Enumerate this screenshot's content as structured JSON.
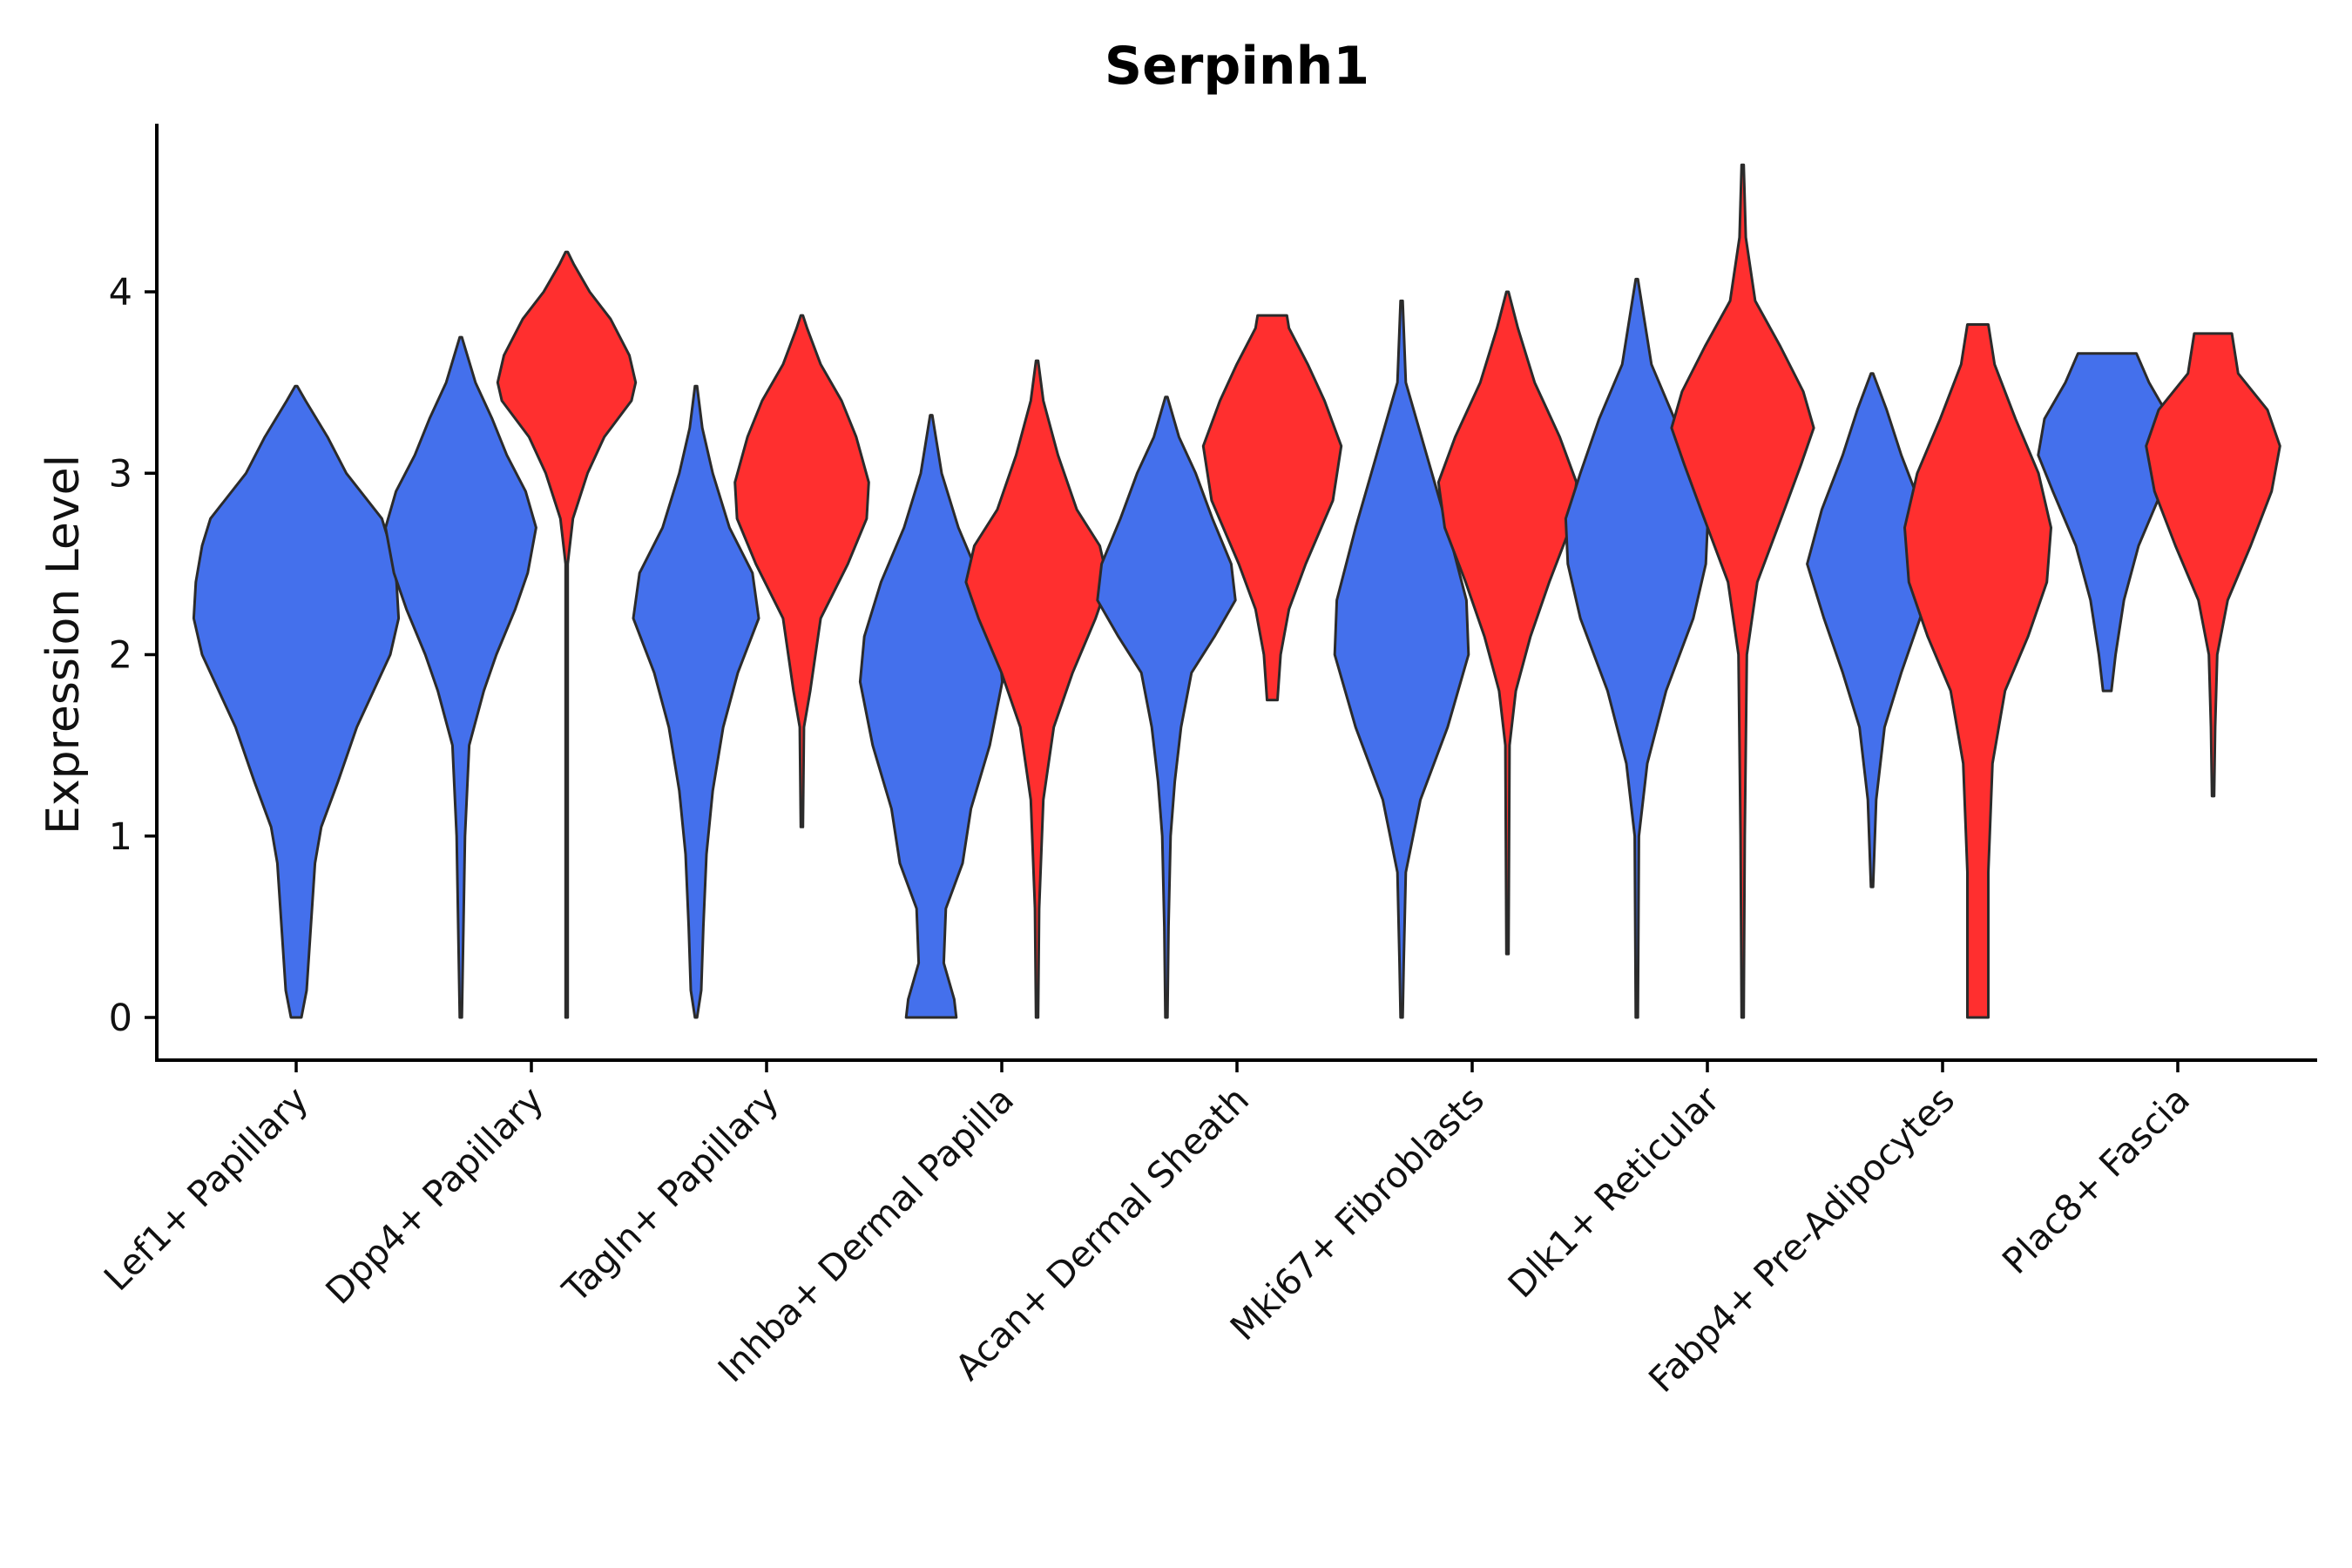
{
  "chart_data": {
    "type": "violin",
    "title": "Serpinh1",
    "xlabel": "",
    "ylabel": "Expression Level",
    "ylim": [
      -0.24,
      4.95
    ],
    "yticks": [
      0,
      1,
      2,
      3,
      4
    ],
    "grid": false,
    "legend": "none",
    "colors": {
      "blue": "#4470ec",
      "red": "#ff2f2f",
      "outline": "#2b2b2b"
    },
    "categories": [
      "Lef1+ Papillary",
      "Dpp4+ Papillary",
      "Tagln+ Papillary",
      "Inhba+ Dermal Papilla",
      "Acan+ Dermal Sheath",
      "Mki67+ Fibroblasts",
      "Dlk1+ Reticular",
      "Fabp4+ Pre-Adipocytes",
      "Plac8+ Fascia"
    ],
    "violins": [
      {
        "category": "Lef1+ Papillary",
        "color": "blue",
        "slot": 0,
        "min": 0,
        "max": 3.48,
        "profile": [
          [
            0,
            0.05
          ],
          [
            0.15,
            0.1
          ],
          [
            0.5,
            0.14
          ],
          [
            0.85,
            0.18
          ],
          [
            1.05,
            0.24
          ],
          [
            1.3,
            0.4
          ],
          [
            1.6,
            0.58
          ],
          [
            1.8,
            0.74
          ],
          [
            2.0,
            0.9
          ],
          [
            2.2,
            0.98
          ],
          [
            2.4,
            0.96
          ],
          [
            2.6,
            0.9
          ],
          [
            2.75,
            0.82
          ],
          [
            3.0,
            0.48
          ],
          [
            3.2,
            0.3
          ],
          [
            3.4,
            0.09
          ],
          [
            3.48,
            0.01
          ]
        ]
      },
      {
        "category": "Dpp4+ Papillary",
        "color": "blue",
        "slot": -0.3,
        "min": 0,
        "max": 3.75,
        "profile": [
          [
            0,
            0.01
          ],
          [
            1.0,
            0.04
          ],
          [
            1.5,
            0.08
          ],
          [
            1.8,
            0.22
          ],
          [
            2.0,
            0.34
          ],
          [
            2.25,
            0.52
          ],
          [
            2.45,
            0.64
          ],
          [
            2.7,
            0.72
          ],
          [
            2.9,
            0.62
          ],
          [
            3.1,
            0.44
          ],
          [
            3.3,
            0.3
          ],
          [
            3.5,
            0.14
          ],
          [
            3.75,
            0.01
          ]
        ]
      },
      {
        "category": "Dpp4+ Papillary",
        "color": "red",
        "slot": 0.15,
        "min": 0,
        "max": 4.22,
        "profile": [
          [
            0,
            0.01
          ],
          [
            2.5,
            0.01
          ],
          [
            2.75,
            0.06
          ],
          [
            3.0,
            0.2
          ],
          [
            3.2,
            0.36
          ],
          [
            3.4,
            0.62
          ],
          [
            3.5,
            0.66
          ],
          [
            3.65,
            0.6
          ],
          [
            3.85,
            0.42
          ],
          [
            4.0,
            0.22
          ],
          [
            4.15,
            0.07
          ],
          [
            4.22,
            0.01
          ]
        ]
      },
      {
        "category": "Tagln+ Papillary",
        "color": "blue",
        "slot": -0.3,
        "min": 0,
        "max": 3.48,
        "profile": [
          [
            0,
            0.01
          ],
          [
            0.15,
            0.05
          ],
          [
            0.5,
            0.07
          ],
          [
            0.9,
            0.1
          ],
          [
            1.25,
            0.16
          ],
          [
            1.6,
            0.26
          ],
          [
            1.9,
            0.4
          ],
          [
            2.2,
            0.6
          ],
          [
            2.45,
            0.54
          ],
          [
            2.7,
            0.32
          ],
          [
            3.0,
            0.16
          ],
          [
            3.25,
            0.06
          ],
          [
            3.48,
            0.01
          ]
        ]
      },
      {
        "category": "Tagln+ Papillary",
        "color": "red",
        "slot": 0.15,
        "min": 1.05,
        "max": 3.87,
        "profile": [
          [
            1.05,
            0.01
          ],
          [
            1.6,
            0.02
          ],
          [
            1.8,
            0.08
          ],
          [
            2.2,
            0.18
          ],
          [
            2.5,
            0.44
          ],
          [
            2.75,
            0.62
          ],
          [
            2.95,
            0.64
          ],
          [
            3.2,
            0.52
          ],
          [
            3.4,
            0.38
          ],
          [
            3.6,
            0.18
          ],
          [
            3.8,
            0.05
          ],
          [
            3.87,
            0.01
          ]
        ]
      },
      {
        "category": "Inhba+ Dermal Papilla",
        "color": "blue",
        "slot": -0.3,
        "min": 0,
        "max": 3.32,
        "profile": [
          [
            0,
            0.24
          ],
          [
            0.1,
            0.22
          ],
          [
            0.3,
            0.12
          ],
          [
            0.6,
            0.14
          ],
          [
            0.85,
            0.3
          ],
          [
            1.15,
            0.38
          ],
          [
            1.5,
            0.56
          ],
          [
            1.85,
            0.68
          ],
          [
            2.1,
            0.64
          ],
          [
            2.4,
            0.48
          ],
          [
            2.7,
            0.26
          ],
          [
            3.0,
            0.1
          ],
          [
            3.32,
            0.01
          ]
        ]
      },
      {
        "category": "Inhba+ Dermal Papilla",
        "color": "red",
        "slot": 0.15,
        "min": 0,
        "max": 3.62,
        "profile": [
          [
            0,
            0.01
          ],
          [
            0.6,
            0.02
          ],
          [
            1.2,
            0.06
          ],
          [
            1.6,
            0.16
          ],
          [
            1.9,
            0.34
          ],
          [
            2.2,
            0.56
          ],
          [
            2.4,
            0.68
          ],
          [
            2.6,
            0.6
          ],
          [
            2.8,
            0.38
          ],
          [
            3.1,
            0.2
          ],
          [
            3.4,
            0.06
          ],
          [
            3.62,
            0.01
          ]
        ]
      },
      {
        "category": "Acan+ Dermal Sheath",
        "color": "blue",
        "slot": -0.3,
        "min": 0,
        "max": 3.42,
        "profile": [
          [
            0,
            0.01
          ],
          [
            0.5,
            0.02
          ],
          [
            1.0,
            0.04
          ],
          [
            1.3,
            0.08
          ],
          [
            1.6,
            0.14
          ],
          [
            1.9,
            0.24
          ],
          [
            2.1,
            0.46
          ],
          [
            2.3,
            0.66
          ],
          [
            2.5,
            0.62
          ],
          [
            2.75,
            0.44
          ],
          [
            3.0,
            0.28
          ],
          [
            3.2,
            0.12
          ],
          [
            3.42,
            0.01
          ]
        ]
      },
      {
        "category": "Acan+ Dermal Sheath",
        "color": "red",
        "slot": 0.15,
        "min": 1.75,
        "max": 3.87,
        "profile": [
          [
            1.75,
            0.05
          ],
          [
            2.0,
            0.08
          ],
          [
            2.25,
            0.16
          ],
          [
            2.5,
            0.32
          ],
          [
            2.85,
            0.58
          ],
          [
            3.15,
            0.66
          ],
          [
            3.4,
            0.5
          ],
          [
            3.6,
            0.34
          ],
          [
            3.8,
            0.16
          ],
          [
            3.87,
            0.14
          ]
        ]
      },
      {
        "category": "Mki67+ Fibroblasts",
        "color": "blue",
        "slot": -0.3,
        "min": 0,
        "max": 3.95,
        "profile": [
          [
            0,
            0.01
          ],
          [
            0.3,
            0.02
          ],
          [
            0.8,
            0.04
          ],
          [
            1.2,
            0.18
          ],
          [
            1.6,
            0.44
          ],
          [
            2.0,
            0.64
          ],
          [
            2.3,
            0.62
          ],
          [
            2.7,
            0.44
          ],
          [
            3.1,
            0.24
          ],
          [
            3.5,
            0.04
          ],
          [
            3.95,
            0.01
          ]
        ]
      },
      {
        "category": "Mki67+ Fibroblasts",
        "color": "red",
        "slot": 0.15,
        "min": 0.35,
        "max": 4.0,
        "profile": [
          [
            0.35,
            0.01
          ],
          [
            1.5,
            0.02
          ],
          [
            1.8,
            0.08
          ],
          [
            2.1,
            0.22
          ],
          [
            2.4,
            0.4
          ],
          [
            2.7,
            0.6
          ],
          [
            2.95,
            0.66
          ],
          [
            3.2,
            0.5
          ],
          [
            3.5,
            0.26
          ],
          [
            3.8,
            0.1
          ],
          [
            4.0,
            0.01
          ]
        ]
      },
      {
        "category": "Dlk1+ Reticular",
        "color": "blue",
        "slot": -0.3,
        "min": 0,
        "max": 4.07,
        "profile": [
          [
            0,
            0.01
          ],
          [
            1.0,
            0.02
          ],
          [
            1.4,
            0.1
          ],
          [
            1.8,
            0.28
          ],
          [
            2.2,
            0.54
          ],
          [
            2.5,
            0.66
          ],
          [
            2.75,
            0.68
          ],
          [
            3.0,
            0.54
          ],
          [
            3.3,
            0.36
          ],
          [
            3.6,
            0.14
          ],
          [
            4.07,
            0.01
          ]
        ]
      },
      {
        "category": "Dlk1+ Reticular",
        "color": "red",
        "slot": 0.15,
        "min": 0,
        "max": 4.7,
        "profile": [
          [
            0,
            0.01
          ],
          [
            1.0,
            0.02
          ],
          [
            2.0,
            0.04
          ],
          [
            2.4,
            0.14
          ],
          [
            2.8,
            0.4
          ],
          [
            3.05,
            0.56
          ],
          [
            3.25,
            0.68
          ],
          [
            3.45,
            0.58
          ],
          [
            3.7,
            0.36
          ],
          [
            3.95,
            0.12
          ],
          [
            4.3,
            0.03
          ],
          [
            4.7,
            0.01
          ]
        ]
      },
      {
        "category": "Fabp4+ Pre-Adipocytes",
        "color": "blue",
        "slot": -0.3,
        "min": 0.72,
        "max": 3.55,
        "profile": [
          [
            0.72,
            0.01
          ],
          [
            1.2,
            0.04
          ],
          [
            1.6,
            0.12
          ],
          [
            1.9,
            0.28
          ],
          [
            2.2,
            0.46
          ],
          [
            2.5,
            0.62
          ],
          [
            2.8,
            0.48
          ],
          [
            3.1,
            0.28
          ],
          [
            3.35,
            0.14
          ],
          [
            3.55,
            0.01
          ]
        ]
      },
      {
        "category": "Fabp4+ Pre-Adipocytes",
        "color": "red",
        "slot": 0.15,
        "min": 0,
        "max": 3.82,
        "profile": [
          [
            0,
            0.1
          ],
          [
            0.8,
            0.1
          ],
          [
            1.4,
            0.14
          ],
          [
            1.8,
            0.26
          ],
          [
            2.1,
            0.48
          ],
          [
            2.4,
            0.66
          ],
          [
            2.7,
            0.7
          ],
          [
            3.0,
            0.58
          ],
          [
            3.3,
            0.36
          ],
          [
            3.6,
            0.16
          ],
          [
            3.82,
            0.1
          ]
        ]
      },
      {
        "category": "Plac8+ Fascia",
        "color": "blue",
        "slot": -0.3,
        "min": 1.8,
        "max": 3.66,
        "profile": [
          [
            1.8,
            0.04
          ],
          [
            2.0,
            0.08
          ],
          [
            2.3,
            0.16
          ],
          [
            2.6,
            0.3
          ],
          [
            2.9,
            0.52
          ],
          [
            3.1,
            0.66
          ],
          [
            3.3,
            0.6
          ],
          [
            3.5,
            0.4
          ],
          [
            3.66,
            0.28
          ]
        ]
      },
      {
        "category": "Plac8+ Fascia",
        "color": "red",
        "slot": 0.15,
        "min": 1.22,
        "max": 3.77,
        "profile": [
          [
            1.22,
            0.01
          ],
          [
            1.6,
            0.02
          ],
          [
            2.0,
            0.04
          ],
          [
            2.3,
            0.14
          ],
          [
            2.6,
            0.36
          ],
          [
            2.9,
            0.56
          ],
          [
            3.15,
            0.64
          ],
          [
            3.35,
            0.52
          ],
          [
            3.55,
            0.24
          ],
          [
            3.77,
            0.18
          ]
        ]
      }
    ]
  }
}
